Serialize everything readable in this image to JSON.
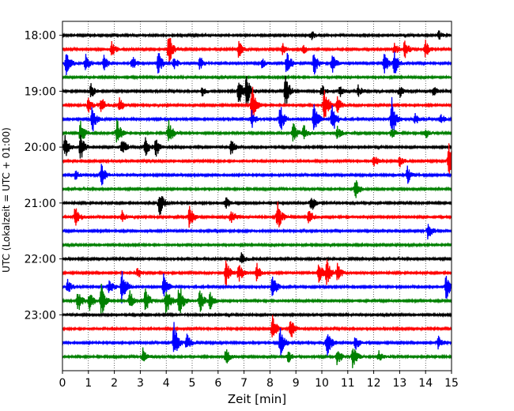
{
  "chart_data": {
    "type": "line",
    "title": "",
    "xlabel": "Zeit  [min]",
    "ylabel": "UTC (Lokalzeit = UTC + 01:00)",
    "xlim": [
      0,
      15
    ],
    "ylim": [
      24,
      17.75
    ],
    "x_ticks": [
      0,
      1,
      2,
      3,
      4,
      5,
      6,
      7,
      8,
      9,
      10,
      11,
      12,
      13,
      14,
      15
    ],
    "y_ticks": [
      {
        "value": 18,
        "label": "18:00"
      },
      {
        "value": 19,
        "label": "19:00"
      },
      {
        "value": 20,
        "label": "20:00"
      },
      {
        "value": 21,
        "label": "21:00"
      },
      {
        "value": 22,
        "label": "22:00"
      },
      {
        "value": 23,
        "label": "23:00"
      }
    ],
    "grid": "vertical dotted lines at each minute",
    "color_cycle": [
      "#000000",
      "#ff0000",
      "#0000ff",
      "#008000"
    ],
    "trace_interval_min": 15,
    "traces": [
      {
        "start": "18:00",
        "bursts": [
          {
            "t": 9.6,
            "a": 0.3
          },
          {
            "t": 14.5,
            "a": 0.3
          }
        ]
      },
      {
        "start": "18:15",
        "bursts": [
          {
            "t": 1.9,
            "a": 0.45
          },
          {
            "t": 4.1,
            "a": 1
          },
          {
            "t": 6.8,
            "a": 0.55
          },
          {
            "t": 8.5,
            "a": 0.4
          },
          {
            "t": 9.3,
            "a": 0.3
          },
          {
            "t": 12.8,
            "a": 0.4
          },
          {
            "t": 13.2,
            "a": 0.55
          },
          {
            "t": 14.0,
            "a": 0.5
          }
        ]
      },
      {
        "start": "18:30",
        "bursts": [
          {
            "t": 0.15,
            "a": 0.75
          },
          {
            "t": 0.9,
            "a": 0.5
          },
          {
            "t": 1.6,
            "a": 0.5
          },
          {
            "t": 2.7,
            "a": 0.45
          },
          {
            "t": 3.7,
            "a": 0.7
          },
          {
            "t": 4.3,
            "a": 0.4
          },
          {
            "t": 5.3,
            "a": 0.4
          },
          {
            "t": 7.7,
            "a": 0.3
          },
          {
            "t": 8.65,
            "a": 0.8
          },
          {
            "t": 9.7,
            "a": 0.7
          },
          {
            "t": 10.4,
            "a": 0.55
          },
          {
            "t": 12.4,
            "a": 0.75
          },
          {
            "t": 12.8,
            "a": 0.7
          }
        ]
      },
      {
        "start": "18:45",
        "bursts": []
      },
      {
        "start": "19:00",
        "bursts": [
          {
            "t": 1.1,
            "a": 0.45
          },
          {
            "t": 5.4,
            "a": 0.3
          },
          {
            "t": 6.8,
            "a": 0.8
          },
          {
            "t": 7.1,
            "a": 0.9
          },
          {
            "t": 8.6,
            "a": 1
          },
          {
            "t": 10.0,
            "a": 0.4
          },
          {
            "t": 10.7,
            "a": 0.35
          },
          {
            "t": 11.4,
            "a": 0.35
          },
          {
            "t": 13.0,
            "a": 0.35
          },
          {
            "t": 14.3,
            "a": 0.3
          }
        ]
      },
      {
        "start": "19:15",
        "bursts": [
          {
            "t": 1.0,
            "a": 0.45
          },
          {
            "t": 1.5,
            "a": 0.5
          },
          {
            "t": 2.2,
            "a": 0.45
          },
          {
            "t": 7.3,
            "a": 1.3
          },
          {
            "t": 10.1,
            "a": 1.1
          },
          {
            "t": 10.6,
            "a": 0.5
          }
        ]
      },
      {
        "start": "19:30",
        "bursts": [
          {
            "t": 1.15,
            "a": 0.85
          },
          {
            "t": 7.3,
            "a": 0.5
          },
          {
            "t": 8.4,
            "a": 0.85
          },
          {
            "t": 9.7,
            "a": 0.95
          },
          {
            "t": 10.4,
            "a": 0.95
          },
          {
            "t": 12.7,
            "a": 1.2
          },
          {
            "t": 13.6,
            "a": 0.35
          },
          {
            "t": 14.6,
            "a": 0.3
          }
        ]
      },
      {
        "start": "19:45",
        "bursts": [
          {
            "t": 0.7,
            "a": 0.75
          },
          {
            "t": 2.1,
            "a": 0.85
          },
          {
            "t": 4.1,
            "a": 0.8
          },
          {
            "t": 8.9,
            "a": 0.6
          },
          {
            "t": 9.3,
            "a": 0.5
          },
          {
            "t": 10.6,
            "a": 0.4
          },
          {
            "t": 12.7,
            "a": 0.35
          },
          {
            "t": 14.0,
            "a": 0.35
          }
        ]
      },
      {
        "start": "20:00",
        "bursts": [
          {
            "t": 0.1,
            "a": 0.7
          },
          {
            "t": 0.7,
            "a": 0.85
          },
          {
            "t": 2.3,
            "a": 0.6
          },
          {
            "t": 3.2,
            "a": 0.55
          },
          {
            "t": 3.6,
            "a": 0.6
          },
          {
            "t": 6.5,
            "a": 0.5
          }
        ]
      },
      {
        "start": "20:15",
        "bursts": [
          {
            "t": 12.0,
            "a": 0.4
          },
          {
            "t": 13.0,
            "a": 0.35
          },
          {
            "t": 14.9,
            "a": 1.1
          }
        ]
      },
      {
        "start": "20:30",
        "bursts": [
          {
            "t": 0.5,
            "a": 0.3
          },
          {
            "t": 1.5,
            "a": 0.75
          },
          {
            "t": 13.3,
            "a": 0.55
          }
        ]
      },
      {
        "start": "20:45",
        "bursts": [
          {
            "t": 11.3,
            "a": 0.6
          }
        ]
      },
      {
        "start": "21:00",
        "bursts": [
          {
            "t": 3.75,
            "a": 0.85
          },
          {
            "t": 6.3,
            "a": 0.4
          },
          {
            "t": 9.6,
            "a": 0.5
          }
        ]
      },
      {
        "start": "21:15",
        "bursts": [
          {
            "t": 0.5,
            "a": 0.75
          },
          {
            "t": 2.3,
            "a": 0.4
          },
          {
            "t": 4.9,
            "a": 0.75
          },
          {
            "t": 6.5,
            "a": 0.5
          },
          {
            "t": 8.3,
            "a": 0.85
          },
          {
            "t": 9.5,
            "a": 0.55
          }
        ]
      },
      {
        "start": "21:30",
        "bursts": [
          {
            "t": 14.1,
            "a": 0.55
          }
        ]
      },
      {
        "start": "21:45",
        "bursts": []
      },
      {
        "start": "22:00",
        "bursts": [
          {
            "t": 6.9,
            "a": 0.35
          }
        ]
      },
      {
        "start": "22:15",
        "bursts": [
          {
            "t": 2.9,
            "a": 0.4
          },
          {
            "t": 6.3,
            "a": 0.8
          },
          {
            "t": 6.8,
            "a": 0.6
          },
          {
            "t": 7.5,
            "a": 0.55
          },
          {
            "t": 9.9,
            "a": 0.75
          },
          {
            "t": 10.2,
            "a": 0.7
          },
          {
            "t": 10.6,
            "a": 0.55
          }
        ]
      },
      {
        "start": "22:30",
        "bursts": [
          {
            "t": 0.2,
            "a": 0.45
          },
          {
            "t": 1.8,
            "a": 0.5
          },
          {
            "t": 2.3,
            "a": 1.1
          },
          {
            "t": 3.9,
            "a": 0.75
          },
          {
            "t": 8.1,
            "a": 0.75
          },
          {
            "t": 14.8,
            "a": 0.8
          }
        ]
      },
      {
        "start": "22:45",
        "bursts": [
          {
            "t": 0.6,
            "a": 0.7
          },
          {
            "t": 1.05,
            "a": 0.6
          },
          {
            "t": 1.5,
            "a": 0.95
          },
          {
            "t": 2.6,
            "a": 0.6
          },
          {
            "t": 3.2,
            "a": 0.75
          },
          {
            "t": 4.0,
            "a": 1.1
          },
          {
            "t": 4.5,
            "a": 1.1
          },
          {
            "t": 5.3,
            "a": 0.7
          },
          {
            "t": 5.7,
            "a": 0.5
          }
        ]
      },
      {
        "start": "23:00",
        "bursts": []
      },
      {
        "start": "23:15",
        "bursts": [
          {
            "t": 8.1,
            "a": 0.75
          },
          {
            "t": 8.8,
            "a": 0.7
          }
        ]
      },
      {
        "start": "23:30",
        "bursts": [
          {
            "t": 4.3,
            "a": 1.1
          },
          {
            "t": 4.8,
            "a": 0.5
          },
          {
            "t": 8.4,
            "a": 0.9
          },
          {
            "t": 10.2,
            "a": 0.95
          },
          {
            "t": 11.3,
            "a": 0.45
          },
          {
            "t": 14.5,
            "a": 0.45
          }
        ]
      },
      {
        "start": "23:45",
        "bursts": [
          {
            "t": 3.1,
            "a": 0.5
          },
          {
            "t": 6.3,
            "a": 0.5
          },
          {
            "t": 8.7,
            "a": 0.4
          },
          {
            "t": 10.6,
            "a": 0.55
          },
          {
            "t": 11.2,
            "a": 0.8
          },
          {
            "t": 12.2,
            "a": 0.35
          }
        ]
      }
    ]
  }
}
